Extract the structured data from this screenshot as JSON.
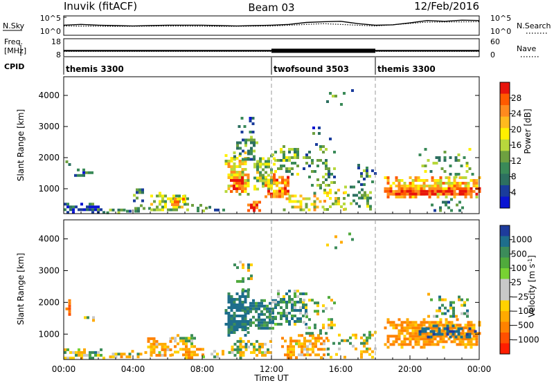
{
  "header": {
    "title_left": "Inuvik (fitACF)",
    "title_center": "Beam 03",
    "title_right": "12/Feb/2016"
  },
  "chart_data": [
    {
      "type": "line",
      "panel": "noise",
      "left_label": "N.Sky",
      "right_label": "N.Search",
      "left_ticks": [
        "10^5",
        "10^0"
      ],
      "right_ticks": [
        "10^5",
        "10^0"
      ],
      "ylim_log10": [
        0,
        5
      ],
      "series": [
        {
          "style": "solid",
          "x_hours": [
            0,
            1,
            2,
            3,
            4,
            5,
            6,
            7,
            8,
            9,
            10,
            11,
            12,
            13,
            14,
            15,
            16,
            17,
            18,
            19,
            20,
            21,
            22,
            23,
            24
          ],
          "log10_values": [
            2.6,
            2.8,
            2.6,
            2.5,
            2.4,
            2.5,
            2.6,
            2.6,
            2.6,
            2.5,
            2.4,
            2.5,
            2.6,
            2.8,
            3.3,
            3.5,
            3.6,
            3.0,
            2.6,
            2.7,
            3.2,
            3.8,
            3.6,
            3.9,
            3.8
          ]
        },
        {
          "style": "dotted",
          "x_hours": [
            0,
            3,
            6,
            9,
            12,
            15,
            18,
            21,
            24
          ],
          "log10_values": [
            2.4,
            2.3,
            2.4,
            2.3,
            2.4,
            3.0,
            2.4,
            3.4,
            3.5
          ]
        }
      ]
    },
    {
      "type": "line",
      "panel": "frequency",
      "left_label_line1": "Freq.",
      "left_label_line2": "[MHz]",
      "right_label": "Nave",
      "left_ticks": [
        "18",
        "8"
      ],
      "right_ticks": [
        "60",
        "0"
      ],
      "ylim": [
        8,
        18
      ],
      "series": [
        {
          "name": "Freq.",
          "style": "solid",
          "x_hours": [
            0,
            24
          ],
          "values": [
            11.3,
            11.3
          ]
        },
        {
          "name": "Nave",
          "style": "dotted",
          "x_hours": [
            0,
            24
          ],
          "values": [
            20,
            20
          ]
        }
      ]
    },
    {
      "type": "table",
      "panel": "cpid",
      "label": "CPID",
      "segments": [
        {
          "start_hour": 0,
          "name": "themis 3300"
        },
        {
          "start_hour": 12,
          "name": "twofsound 3503"
        },
        {
          "start_hour": 18,
          "name": "themis 3300"
        }
      ]
    },
    {
      "type": "heatmap",
      "panel": "power",
      "ylabel": "Slant Range [km]",
      "ylim": [
        200,
        4600
      ],
      "yticks": [
        1000,
        2000,
        3000,
        4000
      ],
      "colorbar_label": "Power [dB]",
      "colorbar_ticks": [
        "28",
        "24",
        "20",
        "16",
        "12",
        "8",
        "4"
      ],
      "colorbar_colors": [
        "#e8140c",
        "#ff5a00",
        "#ff8a1e",
        "#ffba1e",
        "#fff000",
        "#b8d83c",
        "#6ea040",
        "#3a8a58",
        "#2d7060",
        "#1a3c9c",
        "#0a14d2"
      ],
      "blobs": [
        {
          "x0": 0.0,
          "x1": 2.3,
          "r0": 280,
          "r1": 550,
          "d": 0.85,
          "v": 6
        },
        {
          "x0": 0.1,
          "x1": 0.3,
          "r0": 1700,
          "r1": 2000,
          "d": 0.6,
          "v": 8
        },
        {
          "x0": 0.6,
          "x1": 1.7,
          "r0": 1450,
          "r1": 1650,
          "d": 0.6,
          "v": 6
        },
        {
          "x0": 2.3,
          "x1": 3.6,
          "r0": 250,
          "r1": 450,
          "d": 0.65,
          "v": 10
        },
        {
          "x0": 3.6,
          "x1": 5.0,
          "r0": 250,
          "r1": 500,
          "d": 0.5,
          "v": 9
        },
        {
          "x0": 4.0,
          "x1": 4.6,
          "r0": 650,
          "r1": 1100,
          "d": 0.5,
          "v": 9
        },
        {
          "x0": 5.0,
          "x1": 7.2,
          "r0": 300,
          "r1": 900,
          "d": 0.65,
          "v": 14
        },
        {
          "x0": 6.2,
          "x1": 7.0,
          "r0": 500,
          "r1": 800,
          "d": 0.8,
          "v": 22
        },
        {
          "x0": 7.2,
          "x1": 8.2,
          "r0": 300,
          "r1": 600,
          "d": 0.45,
          "v": 12
        },
        {
          "x0": 8.2,
          "x1": 9.3,
          "r0": 280,
          "r1": 450,
          "d": 0.35,
          "v": 7
        },
        {
          "x0": 9.3,
          "x1": 10.6,
          "r0": 800,
          "r1": 2200,
          "d": 0.85,
          "v": 18
        },
        {
          "x0": 9.6,
          "x1": 10.4,
          "r0": 900,
          "r1": 1400,
          "d": 0.85,
          "v": 28
        },
        {
          "x0": 9.8,
          "x1": 11.2,
          "r0": 1900,
          "r1": 2700,
          "d": 0.45,
          "v": 10
        },
        {
          "x0": 9.9,
          "x1": 11.0,
          "r0": 2700,
          "r1": 3400,
          "d": 0.35,
          "v": 7
        },
        {
          "x0": 10.6,
          "x1": 11.4,
          "r0": 300,
          "r1": 700,
          "d": 0.75,
          "v": 26
        },
        {
          "x0": 10.8,
          "x1": 12.2,
          "r0": 1000,
          "r1": 2100,
          "d": 0.65,
          "v": 14
        },
        {
          "x0": 11.6,
          "x1": 13.0,
          "r0": 700,
          "r1": 1500,
          "d": 0.75,
          "v": 24
        },
        {
          "x0": 12.0,
          "x1": 13.6,
          "r0": 1500,
          "r1": 2400,
          "d": 0.55,
          "v": 12
        },
        {
          "x0": 12.5,
          "x1": 15.0,
          "r0": 300,
          "r1": 900,
          "d": 0.5,
          "v": 16
        },
        {
          "x0": 13.8,
          "x1": 15.6,
          "r0": 1000,
          "r1": 2400,
          "d": 0.35,
          "v": 10
        },
        {
          "x0": 14.2,
          "x1": 15.4,
          "r0": 2400,
          "r1": 3000,
          "d": 0.25,
          "v": 8
        },
        {
          "x0": 15.0,
          "x1": 16.2,
          "r0": 300,
          "r1": 1000,
          "d": 0.5,
          "v": 18
        },
        {
          "x0": 16.2,
          "x1": 17.8,
          "r0": 300,
          "r1": 1100,
          "d": 0.45,
          "v": 12
        },
        {
          "x0": 16.8,
          "x1": 18.0,
          "r0": 1100,
          "r1": 1800,
          "d": 0.25,
          "v": 9
        },
        {
          "x0": 15.0,
          "x1": 17.0,
          "r0": 3700,
          "r1": 4200,
          "d": 0.12,
          "v": 8
        },
        {
          "x0": 18.5,
          "x1": 24.0,
          "r0": 700,
          "r1": 1400,
          "d": 0.75,
          "v": 20
        },
        {
          "x0": 18.5,
          "x1": 24.0,
          "r0": 800,
          "r1": 1050,
          "d": 0.9,
          "v": 28
        },
        {
          "x0": 20.5,
          "x1": 23.8,
          "r0": 1400,
          "r1": 2400,
          "d": 0.2,
          "v": 12
        },
        {
          "x0": 21.2,
          "x1": 23.2,
          "r0": 300,
          "r1": 700,
          "d": 0.3,
          "v": 8
        }
      ]
    },
    {
      "type": "heatmap",
      "panel": "velocity",
      "ylabel": "Slant Range [km]",
      "ylim": [
        200,
        4600
      ],
      "yticks": [
        1000,
        2000,
        3000,
        4000
      ],
      "xlabel": "Time UT",
      "xticks": [
        "00:00",
        "04:00",
        "08:00",
        "12:00",
        "16:00",
        "20:00",
        "00:00"
      ],
      "colorbar_label": "Velocity [m s",
      "colorbar_label_sup": "-1",
      "colorbar_label_end": "]",
      "colorbar_ticks": [
        "1000",
        "500",
        "100",
        "25",
        "−25",
        "−100",
        "−500",
        "−1000"
      ],
      "colorbar_colors": [
        "#1e3c9c",
        "#1e6e8c",
        "#3c8c5a",
        "#50aa3c",
        "#78d232",
        "#c8c8c8",
        "#c8c8c8",
        "#ffd200",
        "#ffaa00",
        "#ff8200",
        "#ff5000",
        "#ff1e00"
      ],
      "blobs": [
        {
          "x0": 0.0,
          "x1": 2.3,
          "r0": 280,
          "r1": 550,
          "d": 0.85,
          "v": 70
        },
        {
          "x0": 0.1,
          "x1": 0.3,
          "r0": 1600,
          "r1": 2100,
          "d": 0.7,
          "v": -500
        },
        {
          "x0": 1.0,
          "x1": 1.8,
          "r0": 1450,
          "r1": 1650,
          "d": 0.7,
          "v": 0
        },
        {
          "x0": 2.3,
          "x1": 4.5,
          "r0": 250,
          "r1": 500,
          "d": 0.65,
          "v": -100
        },
        {
          "x0": 4.5,
          "x1": 6.2,
          "r0": 300,
          "r1": 900,
          "d": 0.7,
          "v": -200
        },
        {
          "x0": 6.2,
          "x1": 7.6,
          "r0": 700,
          "r1": 1000,
          "d": 0.75,
          "v": 0
        },
        {
          "x0": 6.2,
          "x1": 8.0,
          "r0": 280,
          "r1": 650,
          "d": 0.7,
          "v": -300
        },
        {
          "x0": 8.0,
          "x1": 9.3,
          "r0": 280,
          "r1": 500,
          "d": 0.45,
          "v": -100
        },
        {
          "x0": 9.3,
          "x1": 10.6,
          "r0": 1000,
          "r1": 2400,
          "d": 0.9,
          "v": 400
        },
        {
          "x0": 9.5,
          "x1": 10.6,
          "r0": 280,
          "r1": 900,
          "d": 0.6,
          "v": 60
        },
        {
          "x0": 10.6,
          "x1": 12.0,
          "r0": 300,
          "r1": 900,
          "d": 0.6,
          "v": 0
        },
        {
          "x0": 10.4,
          "x1": 12.2,
          "r0": 1200,
          "r1": 2100,
          "d": 0.7,
          "v": 300
        },
        {
          "x0": 9.8,
          "x1": 11.0,
          "r0": 2400,
          "r1": 3400,
          "d": 0.35,
          "v": 60
        },
        {
          "x0": 12.0,
          "x1": 14.0,
          "r0": 1300,
          "r1": 2400,
          "d": 0.6,
          "v": 200
        },
        {
          "x0": 12.4,
          "x1": 15.2,
          "r0": 300,
          "r1": 1000,
          "d": 0.65,
          "v": -200
        },
        {
          "x0": 13.8,
          "x1": 15.6,
          "r0": 1000,
          "r1": 2200,
          "d": 0.35,
          "v": 50
        },
        {
          "x0": 15.2,
          "x1": 18.0,
          "r0": 300,
          "r1": 1100,
          "d": 0.45,
          "v": 0
        },
        {
          "x0": 15.0,
          "x1": 17.0,
          "r0": 3700,
          "r1": 4200,
          "d": 0.12,
          "v": 50
        },
        {
          "x0": 18.5,
          "x1": 24.0,
          "r0": 600,
          "r1": 1500,
          "d": 0.85,
          "v": -300
        },
        {
          "x0": 20.5,
          "x1": 23.8,
          "r0": 900,
          "r1": 1300,
          "d": 0.45,
          "v": 600
        },
        {
          "x0": 21.0,
          "x1": 23.5,
          "r0": 1500,
          "r1": 2300,
          "d": 0.3,
          "v": 100
        }
      ]
    }
  ]
}
